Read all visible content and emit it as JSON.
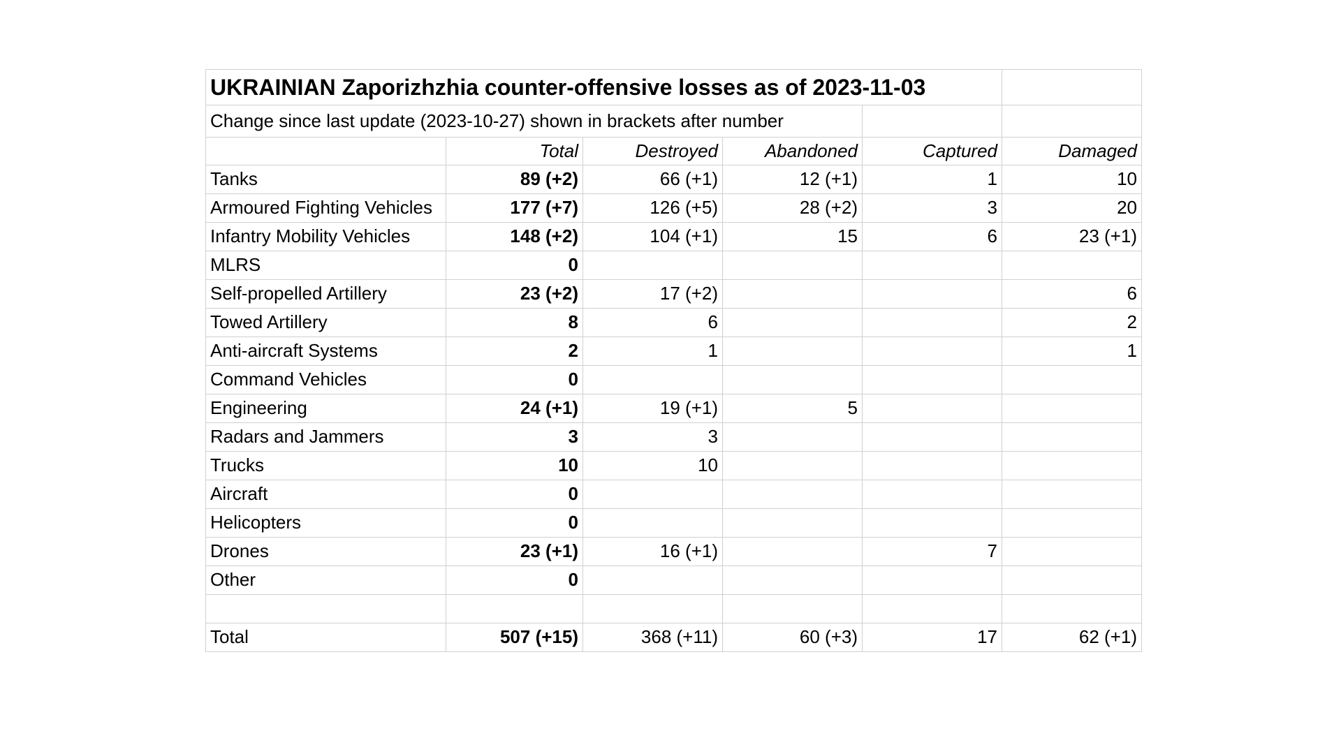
{
  "sheet": {
    "title": "UKRAINIAN Zaporizhzhia counter-offensive losses as of 2023-11-03",
    "subtitle": "Change since last update (2023-10-27) shown in brackets after number",
    "columns": [
      "",
      "Total",
      "Destroyed",
      "Abandoned",
      "Captured",
      "Damaged"
    ],
    "rows": [
      {
        "label": "Tanks",
        "total": "89 (+2)",
        "destroyed": "66 (+1)",
        "abandoned": "12 (+1)",
        "captured": "1",
        "damaged": "10"
      },
      {
        "label": "Armoured Fighting Vehicles",
        "total": "177 (+7)",
        "destroyed": "126 (+5)",
        "abandoned": "28 (+2)",
        "captured": "3",
        "damaged": "20"
      },
      {
        "label": "Infantry Mobility Vehicles",
        "total": "148 (+2)",
        "destroyed": "104 (+1)",
        "abandoned": "15",
        "captured": "6",
        "damaged": "23 (+1)"
      },
      {
        "label": "MLRS",
        "total": "0",
        "destroyed": "",
        "abandoned": "",
        "captured": "",
        "damaged": ""
      },
      {
        "label": "Self-propelled Artillery",
        "total": "23 (+2)",
        "destroyed": "17 (+2)",
        "abandoned": "",
        "captured": "",
        "damaged": "6"
      },
      {
        "label": "Towed Artillery",
        "total": "8",
        "destroyed": "6",
        "abandoned": "",
        "captured": "",
        "damaged": "2"
      },
      {
        "label": "Anti-aircraft Systems",
        "total": "2",
        "destroyed": "1",
        "abandoned": "",
        "captured": "",
        "damaged": "1"
      },
      {
        "label": "Command Vehicles",
        "total": "0",
        "destroyed": "",
        "abandoned": "",
        "captured": "",
        "damaged": ""
      },
      {
        "label": "Engineering",
        "total": "24 (+1)",
        "destroyed": "19 (+1)",
        "abandoned": "5",
        "captured": "",
        "damaged": ""
      },
      {
        "label": "Radars and Jammers",
        "total": "3",
        "destroyed": "3",
        "abandoned": "",
        "captured": "",
        "damaged": ""
      },
      {
        "label": "Trucks",
        "total": "10",
        "destroyed": "10",
        "abandoned": "",
        "captured": "",
        "damaged": ""
      },
      {
        "label": "Aircraft",
        "total": "0",
        "destroyed": "",
        "abandoned": "",
        "captured": "",
        "damaged": ""
      },
      {
        "label": "Helicopters",
        "total": "0",
        "destroyed": "",
        "abandoned": "",
        "captured": "",
        "damaged": ""
      },
      {
        "label": "Drones",
        "total": "23 (+1)",
        "destroyed": "16 (+1)",
        "abandoned": "",
        "captured": "7",
        "damaged": ""
      },
      {
        "label": "Other",
        "total": "0",
        "destroyed": "",
        "abandoned": "",
        "captured": "",
        "damaged": ""
      },
      {
        "label": "",
        "total": "",
        "destroyed": "",
        "abandoned": "",
        "captured": "",
        "damaged": ""
      },
      {
        "label": "Total",
        "total": "507 (+15)",
        "destroyed": "368 (+11)",
        "abandoned": "60 (+3)",
        "captured": "17",
        "damaged": "62 (+1)"
      }
    ],
    "colors": {
      "gridline": "#d0d0d0",
      "text": "#000000",
      "background": "#ffffff"
    }
  }
}
